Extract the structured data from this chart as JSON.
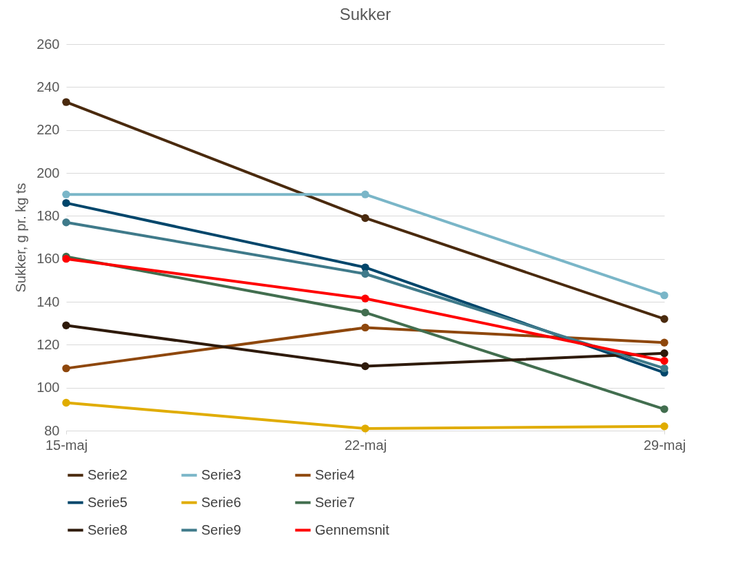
{
  "chart_data": {
    "type": "line",
    "title": "Sukker",
    "ylabel": "Sukker, g pr. kg ts",
    "categories": [
      "15-maj",
      "22-maj",
      "29-maj"
    ],
    "ylim": [
      80,
      260
    ],
    "yticks": [
      80,
      100,
      120,
      140,
      160,
      180,
      200,
      220,
      240,
      260
    ],
    "grid": "y",
    "legend": "bottom",
    "marker": "circle",
    "line_style": "solid",
    "series": [
      {
        "name": "Serie2",
        "color": "#4a2a0e",
        "values": [
          233,
          179,
          132
        ]
      },
      {
        "name": "Serie3",
        "color": "#7ab6c8",
        "values": [
          190,
          190,
          143
        ]
      },
      {
        "name": "Serie4",
        "color": "#8e470c",
        "values": [
          109,
          128,
          121
        ]
      },
      {
        "name": "Serie5",
        "color": "#00466b",
        "values": [
          186,
          156,
          107
        ]
      },
      {
        "name": "Serie6",
        "color": "#e0ac00",
        "values": [
          93,
          81,
          82
        ]
      },
      {
        "name": "Serie7",
        "color": "#426e4f",
        "values": [
          161,
          135,
          90
        ]
      },
      {
        "name": "Serie8",
        "color": "#2e1a0a",
        "values": [
          129,
          110,
          116
        ]
      },
      {
        "name": "Serie9",
        "color": "#3f7a8a",
        "values": [
          177,
          153,
          109
        ]
      },
      {
        "name": "Gennemsnit",
        "color": "#ff0000",
        "values": [
          160,
          141.5,
          112.5
        ]
      }
    ]
  }
}
